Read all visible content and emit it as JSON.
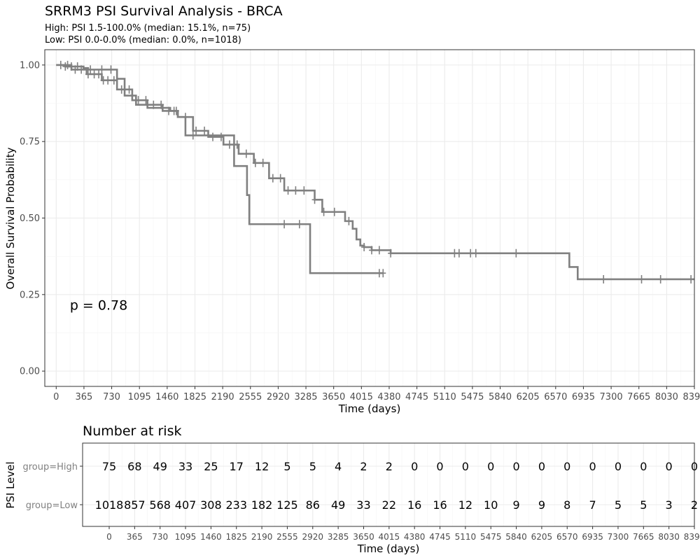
{
  "header": {
    "title": "SRRM3 PSI Survival Analysis - BRCA",
    "subtitle_high": "High: PSI 1.5-100.0% (median: 15.1%, n=75)",
    "subtitle_low": "Low: PSI 0.0-0.0% (median: 0.0%, n=1018)"
  },
  "chart_data": [
    {
      "type": "line",
      "title": "SRRM3 PSI Survival Analysis - BRCA",
      "xlabel": "Time (days)",
      "ylabel": "Overall Survival Probability",
      "xlim": [
        -150,
        8395
      ],
      "ylim": [
        -0.05,
        1.05
      ],
      "x_ticks": [
        "0",
        "365",
        "730",
        "1095",
        "1460",
        "1825",
        "2190",
        "2555",
        "2920",
        "3285",
        "3650",
        "4015",
        "4380",
        "4745",
        "5110",
        "5475",
        "5840",
        "6205",
        "6570",
        "6935",
        "7300",
        "7665",
        "8030",
        "8395"
      ],
      "y_ticks": [
        "0.00",
        "0.25",
        "0.50",
        "0.75",
        "1.00"
      ],
      "grid": true,
      "annotation": "p = 0.78",
      "annotation_pos": [
        180,
        0.2
      ],
      "series": [
        {
          "name": "High",
          "color": "#808080",
          "x": [
            0,
            120,
            360,
            420,
            700,
            800,
            900,
            1050,
            1200,
            1500,
            1600,
            1700,
            1860,
            2340,
            2500,
            2510,
            2540,
            3340,
            3600,
            4300
          ],
          "y": [
            1.0,
            0.995,
            0.99,
            0.985,
            0.985,
            0.955,
            0.9,
            0.87,
            0.86,
            0.85,
            0.83,
            0.77,
            0.77,
            0.67,
            0.67,
            0.575,
            0.48,
            0.32,
            0.32,
            0.32
          ],
          "censor_x": [
            120,
            200,
            280,
            450,
            600,
            720,
            1550,
            1800,
            3000,
            3200,
            4250,
            4300
          ]
        },
        {
          "name": "Low",
          "color": "#808080",
          "x": [
            0,
            200,
            400,
            600,
            800,
            1000,
            1200,
            1400,
            1600,
            1800,
            2000,
            2200,
            2400,
            2600,
            2800,
            3000,
            3200,
            3400,
            3500,
            3800,
            3900,
            3950,
            4000,
            4050,
            4150,
            4400,
            6700,
            6750,
            6860,
            8395
          ],
          "y": [
            1.0,
            0.985,
            0.97,
            0.95,
            0.92,
            0.885,
            0.87,
            0.85,
            0.83,
            0.785,
            0.765,
            0.74,
            0.71,
            0.68,
            0.63,
            0.59,
            0.59,
            0.56,
            0.52,
            0.49,
            0.465,
            0.43,
            0.41,
            0.405,
            0.395,
            0.385,
            0.385,
            0.34,
            0.3,
            0.3
          ],
          "censor_x": [
            60,
            150,
            250,
            330,
            420,
            500,
            560,
            620,
            680,
            760,
            860,
            960,
            1080,
            1180,
            1280,
            1380,
            1480,
            1580,
            1700,
            1840,
            1950,
            2060,
            2170,
            2280,
            2380,
            2500,
            2620,
            2720,
            2850,
            2950,
            3050,
            3150,
            3260,
            3400,
            3520,
            3660,
            3850,
            4050,
            4150,
            4250,
            4400,
            5240,
            5300,
            5450,
            5520,
            6050,
            7200,
            7700,
            7950,
            8350
          ]
        }
      ]
    },
    {
      "type": "table",
      "title": "Number at risk",
      "xlabel": "Time (days)",
      "ylabel": "PSI Level",
      "x_ticks": [
        "0",
        "365",
        "730",
        "1095",
        "1460",
        "1825",
        "2190",
        "2555",
        "2920",
        "3285",
        "3650",
        "4015",
        "4380",
        "4745",
        "5110",
        "5475",
        "5840",
        "6205",
        "6570",
        "6935",
        "7300",
        "7665",
        "8030",
        "8395"
      ],
      "rows": [
        {
          "label": "group=High",
          "values": [
            "75",
            "68",
            "49",
            "33",
            "25",
            "17",
            "12",
            "5",
            "5",
            "4",
            "2",
            "2",
            "0",
            "0",
            "0",
            "0",
            "0",
            "0",
            "0",
            "0",
            "0",
            "0",
            "0",
            "0"
          ]
        },
        {
          "label": "group=Low",
          "values": [
            "1018",
            "857",
            "568",
            "407",
            "308",
            "233",
            "182",
            "125",
            "86",
            "49",
            "33",
            "22",
            "16",
            "16",
            "12",
            "10",
            "9",
            "9",
            "8",
            "7",
            "5",
            "5",
            "3",
            "2"
          ]
        }
      ]
    }
  ]
}
